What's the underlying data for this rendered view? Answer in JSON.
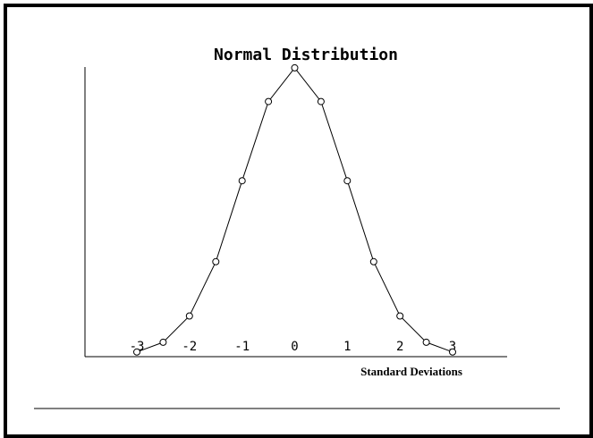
{
  "chart_data": {
    "type": "line",
    "title": "Normal Distribution",
    "xlabel": "Standard Deviations",
    "ylabel": "",
    "x": [
      -3,
      -2.5,
      -2,
      -1.5,
      -1,
      -0.5,
      0,
      0.5,
      1,
      1.5,
      2,
      2.5,
      3
    ],
    "y": [
      0.004,
      0.0175,
      0.054,
      0.1295,
      0.242,
      0.352,
      0.3989,
      0.352,
      0.242,
      0.1295,
      0.054,
      0.0175,
      0.004
    ],
    "xticks": [
      -3,
      -2,
      -1,
      0,
      1,
      2,
      3
    ],
    "xtick_labels": [
      "-3",
      "-2",
      "-1",
      "0",
      "1",
      "2",
      "3"
    ],
    "xlim": [
      -3,
      3
    ],
    "ylim": [
      0,
      0.4
    ],
    "marker": "circle",
    "grid": false,
    "legend": "none",
    "colors": {
      "line": "#000000",
      "background": "#ffffff",
      "frame": "#000000"
    }
  }
}
